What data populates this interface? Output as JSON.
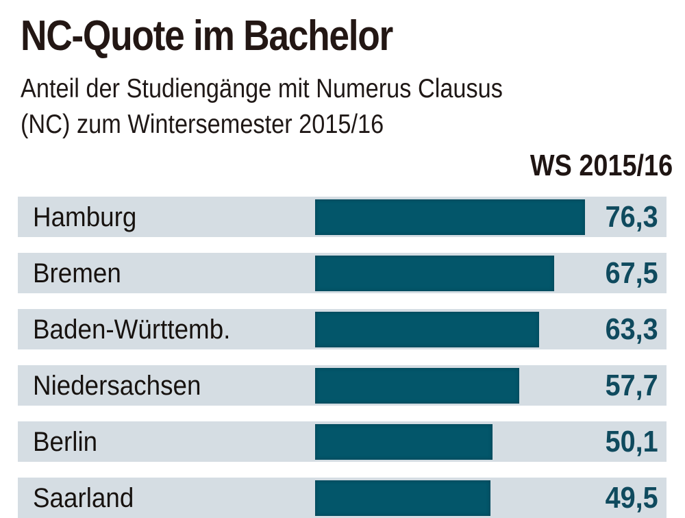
{
  "header": {
    "title": "NC-Quote im Bachelor",
    "subtitle_line1": "Anteil der Studiengänge mit Numerus Clausus",
    "subtitle_line2": "(NC) zum Wintersemester 2015/16",
    "column_header": "WS 2015/16"
  },
  "colors": {
    "bar": "#03566a",
    "row_background": "#d5dde3",
    "value_text": "#0f4a5e",
    "title_text": "#231714"
  },
  "rows": [
    {
      "label": "Hamburg",
      "value": 76.3,
      "value_text": "76,3"
    },
    {
      "label": "Bremen",
      "value": 67.5,
      "value_text": "67,5"
    },
    {
      "label": "Baden-Württemb.",
      "value": 63.3,
      "value_text": "63,3"
    },
    {
      "label": "Niedersachsen",
      "value": 57.7,
      "value_text": "57,7"
    },
    {
      "label": "Berlin",
      "value": 50.1,
      "value_text": "50,1"
    },
    {
      "label": "Saarland",
      "value": 49.5,
      "value_text": "49,5"
    }
  ],
  "chart_data": {
    "type": "bar",
    "orientation": "horizontal",
    "title": "NC-Quote im Bachelor",
    "subtitle": "Anteil der Studiengänge mit Numerus Clausus (NC) zum Wintersemester 2015/16",
    "xlabel": "",
    "ylabel": "",
    "series": [
      {
        "name": "WS 2015/16",
        "values": [
          76.3,
          67.5,
          63.3,
          57.7,
          50.1,
          49.5
        ]
      }
    ],
    "categories": [
      "Hamburg",
      "Bremen",
      "Baden-Württemb.",
      "Niedersachsen",
      "Berlin",
      "Saarland"
    ],
    "unit": "%",
    "data_labels": true,
    "grid": false,
    "legend": "none"
  }
}
